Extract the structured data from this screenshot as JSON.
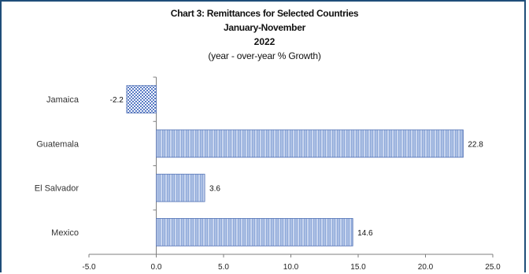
{
  "chart_data": {
    "type": "bar",
    "orientation": "horizontal",
    "title": "Chart 3:  Remittances for Selected Countries",
    "subtitle_lines": [
      "January-November",
      "2022",
      "(year - over-year % Growth)"
    ],
    "categories": [
      "Jamaica",
      "Guatemala",
      "El Salvador",
      "Mexico"
    ],
    "values": [
      -2.2,
      22.8,
      3.6,
      14.6
    ],
    "data_labels": [
      "-2.2",
      "22.8",
      "3.6",
      "14.6"
    ],
    "xlim": [
      -5.0,
      25.0
    ],
    "x_ticks": [
      -5.0,
      0.0,
      5.0,
      10.0,
      15.0,
      20.0,
      25.0
    ],
    "x_tick_labels": [
      "-5.0",
      "0.0",
      "5.0",
      "10.0",
      "15.0",
      "20.0",
      "25.0"
    ],
    "grid": false,
    "legend": "none",
    "colors": {
      "bar_fill": "#8fa9d9",
      "bar_stripe": "#c9d6ef",
      "bar_edge": "#4f6fb4",
      "negative_pattern": "#4a6fc0",
      "frame": "#1f4e79"
    }
  }
}
